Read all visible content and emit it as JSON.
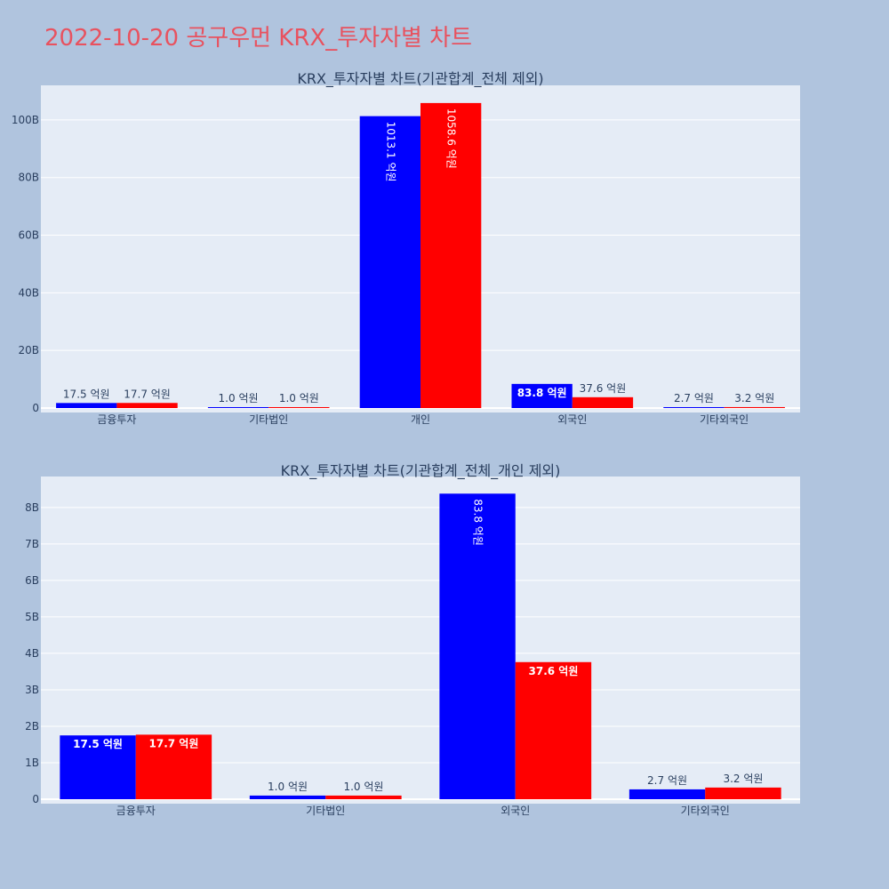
{
  "page_title": "2022-10-20 공구우먼 KRX_투자자별 차트",
  "colors": {
    "buy": "#0000ff",
    "sell": "#ff0000",
    "plot_bg": "#e5ecf6",
    "page_bg": "#b0c4de",
    "title": "#e8525f"
  },
  "chart_data": [
    {
      "type": "bar",
      "title": "KRX_투자자별 차트(기관합계_전체 제외)",
      "categories": [
        "금융투자",
        "기타법인",
        "개인",
        "외국인",
        "기타외국인"
      ],
      "series": [
        {
          "color": "#0000ff",
          "values": [
            1.75,
            0.1,
            101.31,
            8.38,
            0.27
          ],
          "labels": [
            "17.5 억원",
            "1.0 억원",
            "1013.1 억원",
            "83.8 억원",
            "2.7 억원"
          ]
        },
        {
          "color": "#ff0000",
          "values": [
            1.77,
            0.1,
            105.86,
            3.76,
            0.32
          ],
          "labels": [
            "17.7 억원",
            "1.0 억원",
            "1058.6 억원",
            "37.6 억원",
            "3.2 억원"
          ]
        }
      ],
      "y_ticks": [
        0,
        20,
        40,
        60,
        80,
        100
      ],
      "y_tick_labels": [
        "0",
        "20B",
        "40B",
        "60B",
        "80B",
        "100B"
      ],
      "ylim": [
        0,
        112
      ],
      "grid": true
    },
    {
      "type": "bar",
      "title": "KRX_투자자별 차트(기관합계_전체_개인 제외)",
      "categories": [
        "금융투자",
        "기타법인",
        "외국인",
        "기타외국인"
      ],
      "series": [
        {
          "color": "#0000ff",
          "values": [
            1.75,
            0.1,
            8.38,
            0.27
          ],
          "labels": [
            "17.5 억원",
            "1.0 억원",
            "83.8 억원",
            "2.7 억원"
          ]
        },
        {
          "color": "#ff0000",
          "values": [
            1.77,
            0.1,
            3.76,
            0.32
          ],
          "labels": [
            "17.7 억원",
            "1.0 억원",
            "37.6 억원",
            "3.2 억원"
          ]
        }
      ],
      "y_ticks": [
        0,
        1,
        2,
        3,
        4,
        5,
        6,
        7,
        8
      ],
      "y_tick_labels": [
        "0",
        "1B",
        "2B",
        "3B",
        "4B",
        "5B",
        "6B",
        "7B",
        "8B"
      ],
      "ylim": [
        0,
        8.85
      ],
      "grid": true
    }
  ]
}
